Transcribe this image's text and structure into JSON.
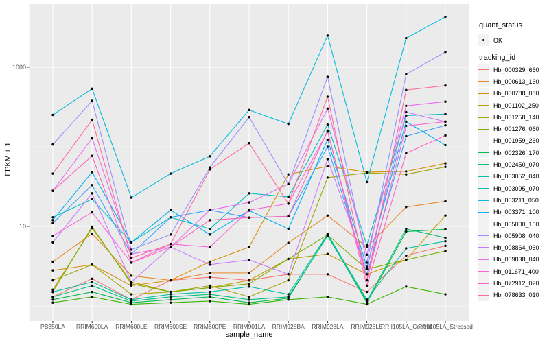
{
  "panel": {
    "bg_color": "#EBEBEB",
    "grid_color": "#FFFFFF",
    "point_color": "#000000",
    "tick_color": "#333333",
    "tick_text_color": "#4d4d4d"
  },
  "legend": {
    "quant_status_title": "quant_status",
    "quant_status_items": [
      "OK"
    ],
    "tracking_title": "tracking_id"
  },
  "chart_data": {
    "type": "line",
    "title": "",
    "xlabel": "sample_name",
    "ylabel": "FPKM + 1",
    "y_scale": "log10",
    "ylim": [
      1,
      6000
    ],
    "grid": true,
    "legend_position": "right",
    "y_ticks": [
      {
        "v": 10,
        "label": "10"
      },
      {
        "v": 1000,
        "label": "1000"
      }
    ],
    "y_minor_gridlines": [
      1,
      100
    ],
    "x_categories": [
      "PB350LA",
      "RRIM600LA",
      "RRIM600LE",
      "RRIM600SE",
      "RRIM600PE",
      "RRIM901LA",
      "RRIM928BA",
      "RRIM928LA",
      "RRIM928LE",
      "RRII105LA_Control",
      "RRII105LA_Stressed"
    ],
    "series": [
      {
        "name": "Hb_000329_660",
        "color": "#F8766D",
        "values": [
          1.3,
          2.2,
          1.2,
          2.1,
          2.3,
          2.1,
          2.5,
          2.5,
          1.5,
          4.3,
          5.7
        ]
      },
      {
        "name": "Hb_000613_160",
        "color": "#E88526",
        "values": [
          3.6,
          8.1,
          2.4,
          2.1,
          2.6,
          2.6,
          6.2,
          13.7,
          5.5,
          17.5,
          20.7
        ]
      },
      {
        "name": "Hb_000788_080",
        "color": "#D89000",
        "values": [
          2.8,
          3.3,
          1.8,
          2.1,
          3.6,
          5.5,
          45,
          57,
          48,
          49,
          62
        ]
      },
      {
        "name": "Hb_001102_250",
        "color": "#C09B00",
        "values": [
          1.6,
          9.5,
          2.0,
          1.5,
          1.7,
          2.1,
          3.9,
          4.5,
          2.5,
          3.8,
          13.7
        ]
      },
      {
        "name": "Hb_001258_140",
        "color": "#A3A500",
        "values": [
          2.1,
          3.3,
          1.4,
          1.5,
          1.8,
          1.3,
          2.1,
          41,
          47,
          45,
          56
        ]
      },
      {
        "name": "Hb_001276_060",
        "color": "#7CAE00",
        "values": [
          1.5,
          9.9,
          1.9,
          1.5,
          1.7,
          1.9,
          3.9,
          7.8,
          2.9,
          3.8,
          4.9
        ]
      },
      {
        "name": "Hb_001959_260",
        "color": "#39B600",
        "values": [
          1.1,
          1.3,
          1.05,
          1.1,
          1.15,
          1.05,
          1.2,
          1.3,
          1.05,
          1.75,
          1.4
        ]
      },
      {
        "name": "Hb_002326_170",
        "color": "#00BB4E",
        "values": [
          1.2,
          1.5,
          1.1,
          1.2,
          1.3,
          1.1,
          1.25,
          7.8,
          1.1,
          8.6,
          9.2
        ]
      },
      {
        "name": "Hb_002450_070",
        "color": "#00BF7D",
        "values": [
          1.3,
          1.8,
          1.15,
          1.3,
          1.4,
          1.2,
          1.3,
          7.6,
          1.15,
          9.3,
          7.2
        ]
      },
      {
        "name": "Hb_003052_040",
        "color": "#00C1A3",
        "values": [
          1.5,
          2.0,
          1.2,
          1.4,
          1.5,
          1.75,
          1.4,
          8.0,
          1.2,
          5.3,
          6.5
        ]
      },
      {
        "name": "Hb_003095_070",
        "color": "#00BFC4",
        "values": [
          13,
          22,
          6.3,
          13,
          9.3,
          26,
          23.5,
          190,
          5.8,
          247,
          258
        ]
      },
      {
        "name": "Hb_003211_050",
        "color": "#00BAE0",
        "values": [
          252,
          537,
          23,
          46,
          76,
          290,
          194,
          2500,
          36,
          2320,
          4300
        ]
      },
      {
        "name": "Hb_003371_100",
        "color": "#00B0F6",
        "values": [
          12,
          48,
          6.3,
          16,
          7.9,
          15.8,
          9.3,
          123,
          3.1,
          207,
          105
        ]
      },
      {
        "name": "Hb_005000_160",
        "color": "#35A2FF",
        "values": [
          11,
          33,
          4.5,
          13,
          16,
          12.9,
          13.4,
          100,
          2.5,
          136,
          186
        ]
      },
      {
        "name": "Hb_005908_040",
        "color": "#9590FF",
        "values": [
          107,
          378,
          5.1,
          7.9,
          55,
          236,
          34,
          758,
          3.5,
          815,
          1556
        ]
      },
      {
        "name": "Hb_008864_060",
        "color": "#C77CFF",
        "values": [
          6.3,
          26,
          2.0,
          5.5,
          3.3,
          3.8,
          2.5,
          70,
          2.9,
          273,
          207
        ]
      },
      {
        "name": "Hb_009838_040",
        "color": "#E76BF3",
        "values": [
          28,
          128,
          4.5,
          5.5,
          16,
          20,
          34,
          302,
          4.4,
          327,
          369
        ]
      },
      {
        "name": "Hb_011671_400",
        "color": "#FA62DB",
        "values": [
          7.6,
          15,
          3.5,
          6.0,
          5.5,
          16,
          19.3,
          155,
          2.1,
          183,
          207
        ]
      },
      {
        "name": "Hb_072912_020",
        "color": "#FF62BC",
        "values": [
          28,
          77,
          3.5,
          5.5,
          12,
          12.9,
          13.4,
          160,
          1.8,
          83,
          139
        ]
      },
      {
        "name": "Hb_078633_010",
        "color": "#FF6A98",
        "values": [
          46,
          219,
          4.0,
          6.0,
          52,
          111,
          19.3,
          426,
          2.1,
          517,
          588
        ]
      }
    ]
  }
}
